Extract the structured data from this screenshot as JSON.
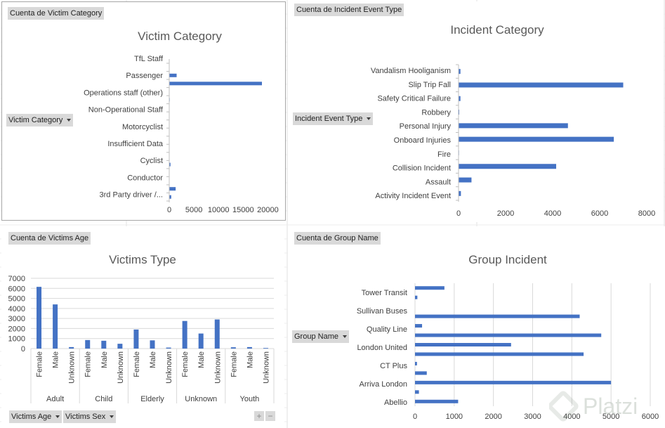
{
  "charts": {
    "victim": {
      "field_button": "Cuenta de Victim  Category",
      "axis_button": "Victim  Category",
      "title": "Victim Category",
      "categories": [
        "TfL Staff",
        "Passenger",
        "Operations staff (other)",
        "Non-Operational Staff",
        "Motorcyclist",
        "Insufficient Data",
        "Cyclist",
        "Conductor",
        "3rd Party driver /..."
      ],
      "x_ticks": [
        "0",
        "5000",
        "10000",
        "15000",
        "20000"
      ]
    },
    "incident": {
      "field_button": "Cuenta de Incident Event Type",
      "axis_button": "Incident Event Type",
      "title": "Incident Category",
      "categories": [
        "Vandalism Hooliganism",
        "Slip Trip Fall",
        "Safety Critical Failure",
        "Robbery",
        "Personal Injury",
        "Onboard Injuries",
        "Fire",
        "Collision Incident",
        "Assault",
        "Activity Incident Event"
      ],
      "x_ticks": [
        "0",
        "2000",
        "4000",
        "6000",
        "8000"
      ]
    },
    "victims_type": {
      "field_button": "Cuenta de Victims  Age",
      "axis_button_age": "Victims  Age",
      "axis_button_sex": "Victims  Sex",
      "title": "Victims Type",
      "groups": [
        "Adult",
        "Child",
        "Elderly",
        "Unknown",
        "Youth"
      ],
      "subgroups": [
        "Female",
        "Male",
        "Unknown"
      ],
      "y_ticks": [
        "0",
        "1000",
        "2000",
        "3000",
        "4000",
        "5000",
        "6000",
        "7000"
      ],
      "plus": "+",
      "minus": "−"
    },
    "group": {
      "field_button": "Cuenta de Group Name",
      "axis_button": "Group Name",
      "title": "Group Incident",
      "labels": [
        "Tower Transit",
        "Sullivan Buses",
        "Quality Line",
        "London United",
        "CT Plus",
        "Arriva London",
        "Abellio"
      ],
      "x_ticks": [
        "0",
        "1000",
        "2000",
        "3000",
        "4000",
        "5000",
        "6000"
      ]
    }
  },
  "watermark": {
    "text": "Platzi"
  },
  "chart_data": [
    {
      "type": "bar",
      "orientation": "horizontal",
      "title": "Victim Category",
      "categories": [
        "3rd Party driver /...",
        "",
        "Conductor",
        "",
        "Cyclist",
        "",
        "Insufficient Data",
        "",
        "Motorcyclist",
        "",
        "Non-Operational Staff",
        "",
        "Operations staff (other)",
        "",
        "Passenger",
        "",
        "TfL Staff"
      ],
      "values": [
        400,
        1300,
        0,
        0,
        250,
        0,
        50,
        0,
        60,
        0,
        50,
        0,
        100,
        0,
        18800,
        1500,
        0
      ],
      "xlim": [
        0,
        22500
      ],
      "grid": false,
      "legend": "none"
    },
    {
      "type": "bar",
      "orientation": "horizontal",
      "title": "Incident Category",
      "categories": [
        "Activity Incident Event",
        "Assault",
        "Collision Incident",
        "Fire",
        "Onboard Injuries",
        "Personal Injury",
        "Robbery",
        "Safety Critical Failure",
        "Slip Trip Fall",
        "Vandalism Hooliganism"
      ],
      "values": [
        100,
        550,
        4150,
        20,
        6600,
        4650,
        30,
        80,
        7000,
        80
      ],
      "xlim": [
        0,
        8000
      ],
      "grid": false,
      "legend": "none"
    },
    {
      "type": "bar",
      "orientation": "vertical",
      "title": "Victims Type",
      "groups": [
        "Adult",
        "Child",
        "Elderly",
        "Unknown",
        "Youth"
      ],
      "subgroups": [
        "Female",
        "Male",
        "Unknown"
      ],
      "values": [
        [
          6150,
          4400,
          150
        ],
        [
          850,
          780,
          480
        ],
        [
          1900,
          820,
          100
        ],
        [
          2750,
          1500,
          2900
        ],
        [
          130,
          150,
          60
        ]
      ],
      "ylim": [
        0,
        7000
      ],
      "grid": true,
      "legend": "none"
    },
    {
      "type": "bar",
      "orientation": "horizontal",
      "title": "Group Incident",
      "categories": [
        "Abellio",
        "",
        "Arriva London",
        "",
        "CT Plus",
        "",
        "London United",
        "",
        "Quality Line",
        "",
        "Sullivan Buses",
        "",
        "Tower Transit"
      ],
      "values": [
        1100,
        100,
        5000,
        300,
        50,
        4300,
        2450,
        4750,
        180,
        4200,
        0,
        60,
        750
      ],
      "xlim": [
        0,
        6000
      ],
      "grid": true,
      "legend": "none"
    }
  ]
}
